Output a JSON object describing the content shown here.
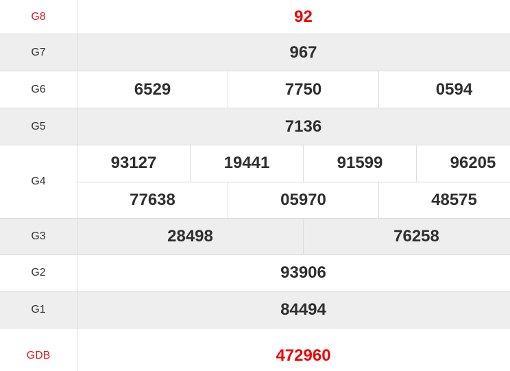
{
  "colors": {
    "special": "#f20000",
    "text": "#2f2f2f",
    "alt_row": "#eeeeee"
  },
  "prizes": [
    {
      "label": "G8",
      "lines": [
        [
          "92"
        ]
      ]
    },
    {
      "label": "G7",
      "lines": [
        [
          "967"
        ]
      ]
    },
    {
      "label": "G6",
      "lines": [
        [
          "6529",
          "7750",
          "0594"
        ]
      ]
    },
    {
      "label": "G5",
      "lines": [
        [
          "7136"
        ]
      ]
    },
    {
      "label": "G4",
      "lines": [
        [
          "93127",
          "19441",
          "91599",
          "96205"
        ],
        [
          "77638",
          "05970",
          "48575"
        ]
      ]
    },
    {
      "label": "G3",
      "lines": [
        [
          "28498",
          "76258"
        ]
      ]
    },
    {
      "label": "G2",
      "lines": [
        [
          "93906"
        ]
      ]
    },
    {
      "label": "G1",
      "lines": [
        [
          "84494"
        ]
      ]
    },
    {
      "label": "GDB",
      "lines": [
        [
          "472960"
        ]
      ]
    }
  ]
}
